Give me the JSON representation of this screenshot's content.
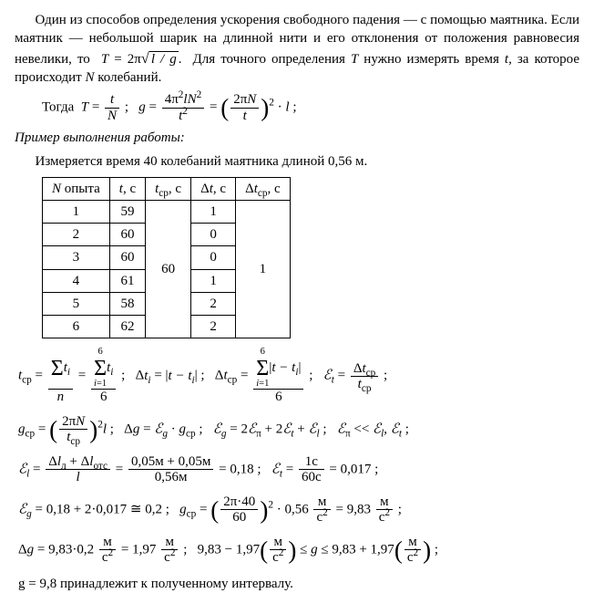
{
  "para1": "Один из способов определения ускорения свободного падения — с помощью маятника. Если маятник — небольшой шарик на длинной нити и его отклонения от положения равновесия невелики, то T = 2π√(l/g). Для точного определения T нужно измерять время t, за которое происходит N колебаний.",
  "togda": "Тогда",
  "primer": "Пример выполнения работы:",
  "measure": "Измеряется время 40 колебаний маятника длиной 0,56 м.",
  "table": {
    "headers": [
      "N опыта",
      "t, с",
      "t_ср, с",
      "Δt, с",
      "Δt_ср, с"
    ],
    "rows": [
      {
        "n": "1",
        "t": "59",
        "dt": "1"
      },
      {
        "n": "2",
        "t": "60",
        "dt": "0"
      },
      {
        "n": "3",
        "t": "60",
        "dt": "0"
      },
      {
        "n": "4",
        "t": "61",
        "dt": "1"
      },
      {
        "n": "5",
        "t": "58",
        "dt": "2"
      },
      {
        "n": "6",
        "t": "62",
        "dt": "2"
      }
    ],
    "t_cp": "60",
    "dt_cp": "1"
  },
  "calc": {
    "el_num": "0,05м + 0,05м",
    "el_den": "0,56м",
    "el_val": "0,18",
    "et_num": "1с",
    "et_den": "60с",
    "et_val": "0,017",
    "eg_val": "0,18 + 2·0,017 ≅ 0,2",
    "gcp_a": "2π·40",
    "gcp_b": "60",
    "gcp_l": "0,56",
    "gcp_val": "9,83",
    "dg_val": "9,83·0,2",
    "dg_res": "1,97",
    "range_lo": "9,83 − 1,97",
    "range_hi": "9,83 + 1,97",
    "final": "g = 9,8 принадлежит к полученному интервалу."
  }
}
